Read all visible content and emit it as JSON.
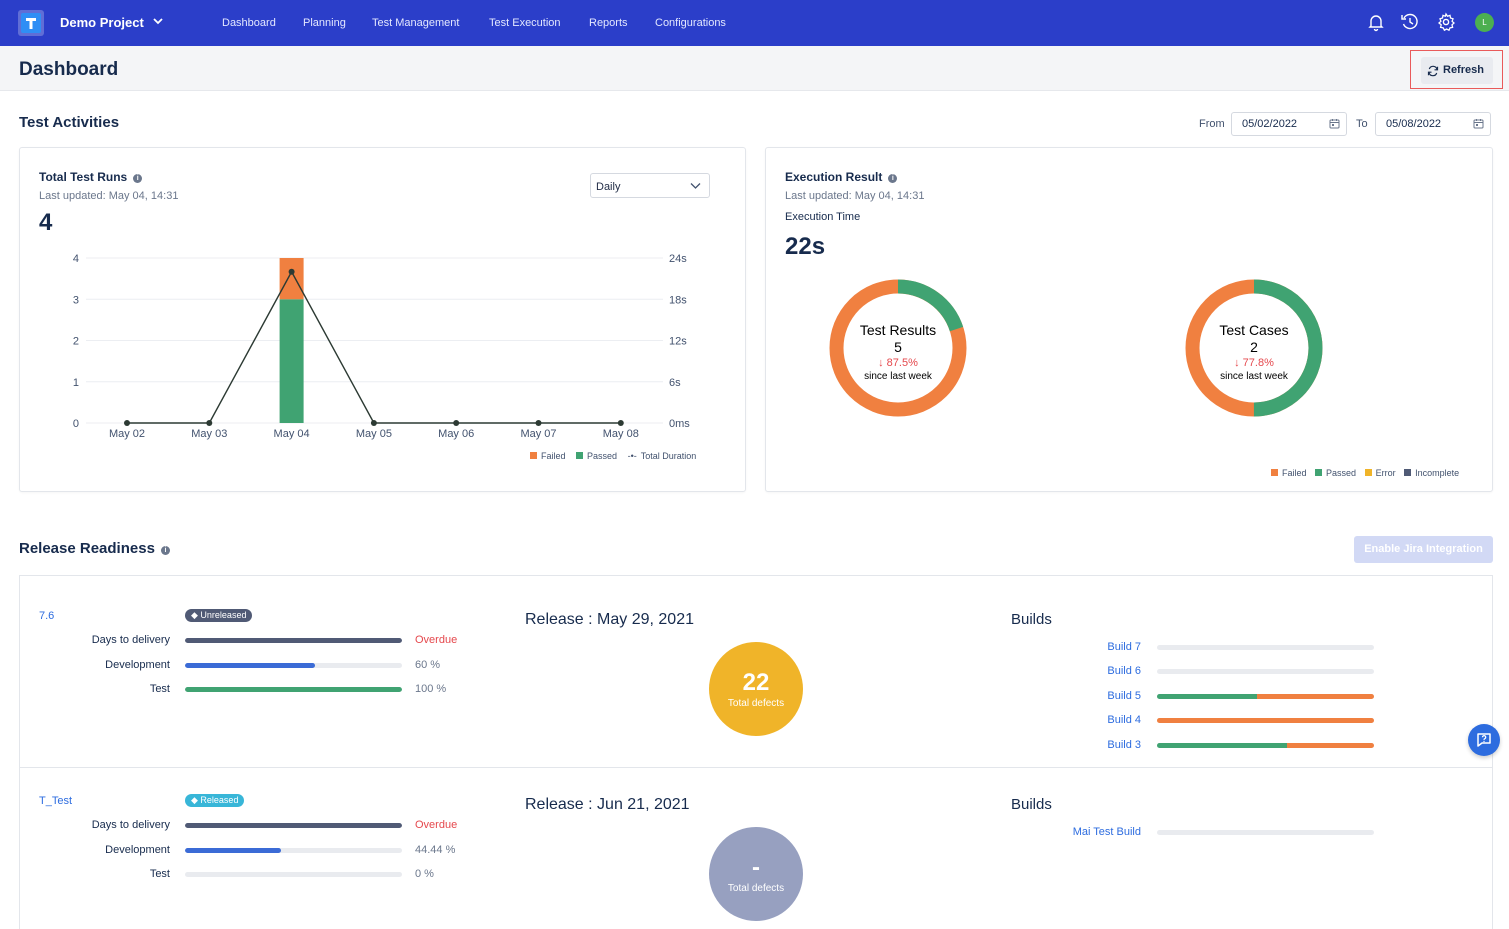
{
  "nav": {
    "project": "Demo Project",
    "links": [
      "Dashboard",
      "Planning",
      "Test Management",
      "Test Execution",
      "Reports",
      "Configurations"
    ],
    "avatar_initial": "L",
    "brand_color": "#2b3ec9"
  },
  "header": {
    "title": "Dashboard",
    "refresh_label": "Refresh"
  },
  "activities": {
    "title": "Test Activities",
    "from_label": "From",
    "from_value": "05/02/2022",
    "to_label": "To",
    "to_value": "05/08/2022"
  },
  "total_runs": {
    "title": "Total Test Runs",
    "updated": "Last updated: May 04, 14:31",
    "value": "4",
    "granularity": "Daily",
    "legend": [
      "Failed",
      "Passed",
      "Total Duration"
    ]
  },
  "chart_data": [
    {
      "type": "bar",
      "title": "Total Test Runs",
      "categories": [
        "May 02",
        "May 03",
        "May 04",
        "May 05",
        "May 06",
        "May 07",
        "May 08"
      ],
      "series": [
        {
          "name": "Passed",
          "values": [
            0,
            0,
            3,
            0,
            0,
            0,
            0
          ],
          "color": "#40a372"
        },
        {
          "name": "Failed",
          "values": [
            0,
            0,
            1,
            0,
            0,
            0,
            0
          ],
          "color": "#f08040"
        },
        {
          "name": "Total Duration",
          "type": "line",
          "axis": "right",
          "values": [
            0,
            0,
            22,
            0,
            0,
            0,
            0
          ]
        }
      ],
      "left_ticks": [
        "0",
        "1",
        "2",
        "3",
        "4"
      ],
      "right_ticks": [
        "0ms",
        "6s",
        "12s",
        "18s",
        "24s"
      ],
      "ylim": [
        0,
        4
      ],
      "y2lim": [
        0,
        24
      ]
    },
    {
      "type": "pie",
      "title": "Test Results",
      "labels": [
        "Passed",
        "Failed"
      ],
      "values": [
        1,
        4
      ],
      "colors": [
        "#40a372",
        "#f08040"
      ]
    },
    {
      "type": "pie",
      "title": "Test Cases",
      "labels": [
        "Passed",
        "Failed"
      ],
      "values": [
        1,
        1
      ],
      "colors": [
        "#40a372",
        "#f08040"
      ]
    }
  ],
  "execution": {
    "title": "Execution Result",
    "updated": "Last updated: May 04, 14:31",
    "time_label": "Execution Time",
    "time_value": "22s",
    "results": {
      "title": "Test Results",
      "count": "5",
      "change": "↓ 87.5%",
      "since": "since last week"
    },
    "cases": {
      "title": "Test Cases",
      "count": "2",
      "change": "↓ 77.8%",
      "since": "since last week"
    },
    "legend": [
      "Failed",
      "Passed",
      "Error",
      "Incomplete"
    ],
    "legend_colors": [
      "#f08040",
      "#40a372",
      "#f0b429",
      "#505a75"
    ]
  },
  "readiness": {
    "title": "Release Readiness",
    "jira_button": "Enable Jira Integration",
    "releases": [
      {
        "name": "7.6",
        "status": "Unreleased",
        "status_color": "#505a75",
        "metrics": [
          {
            "label": "Days to delivery",
            "value": "Overdue",
            "fill": 1.0,
            "color": "#505a75",
            "value_color": "#e5484d"
          },
          {
            "label": "Development",
            "value": "60 %",
            "fill": 0.6,
            "color": "#3b6bd6",
            "value_color": "#6b778c"
          },
          {
            "label": "Test",
            "value": "100 %",
            "fill": 1.0,
            "color": "#40a372",
            "value_color": "#6b778c"
          }
        ],
        "release_date": "Release : May 29, 2021",
        "defects": "22",
        "defects_label": "Total defects",
        "defects_color": "#f0b429",
        "builds_title": "Builds",
        "builds": [
          {
            "name": "Build 7",
            "passed": 0,
            "failed": 0
          },
          {
            "name": "Build 6",
            "passed": 0,
            "failed": 0
          },
          {
            "name": "Build 5",
            "passed": 0.46,
            "failed": 0.54
          },
          {
            "name": "Build 4",
            "passed": 0,
            "failed": 1.0
          },
          {
            "name": "Build 3",
            "passed": 0.6,
            "failed": 0.4
          }
        ]
      },
      {
        "name": "T_Test",
        "status": "Released",
        "status_color": "#38b6d8",
        "metrics": [
          {
            "label": "Days to delivery",
            "value": "Overdue",
            "fill": 1.0,
            "color": "#505a75",
            "value_color": "#e5484d"
          },
          {
            "label": "Development",
            "value": "44.44 %",
            "fill": 0.4444,
            "color": "#3b6bd6",
            "value_color": "#6b778c"
          },
          {
            "label": "Test",
            "value": "0 %",
            "fill": 0,
            "color": "#40a372",
            "value_color": "#6b778c"
          }
        ],
        "release_date": "Release : Jun 21, 2021",
        "defects": "-",
        "defects_label": "Total defects",
        "defects_color": "#97a0c0",
        "builds_title": "Builds",
        "builds": [
          {
            "name": "Mai Test Build",
            "passed": 0,
            "failed": 0
          }
        ]
      }
    ]
  }
}
